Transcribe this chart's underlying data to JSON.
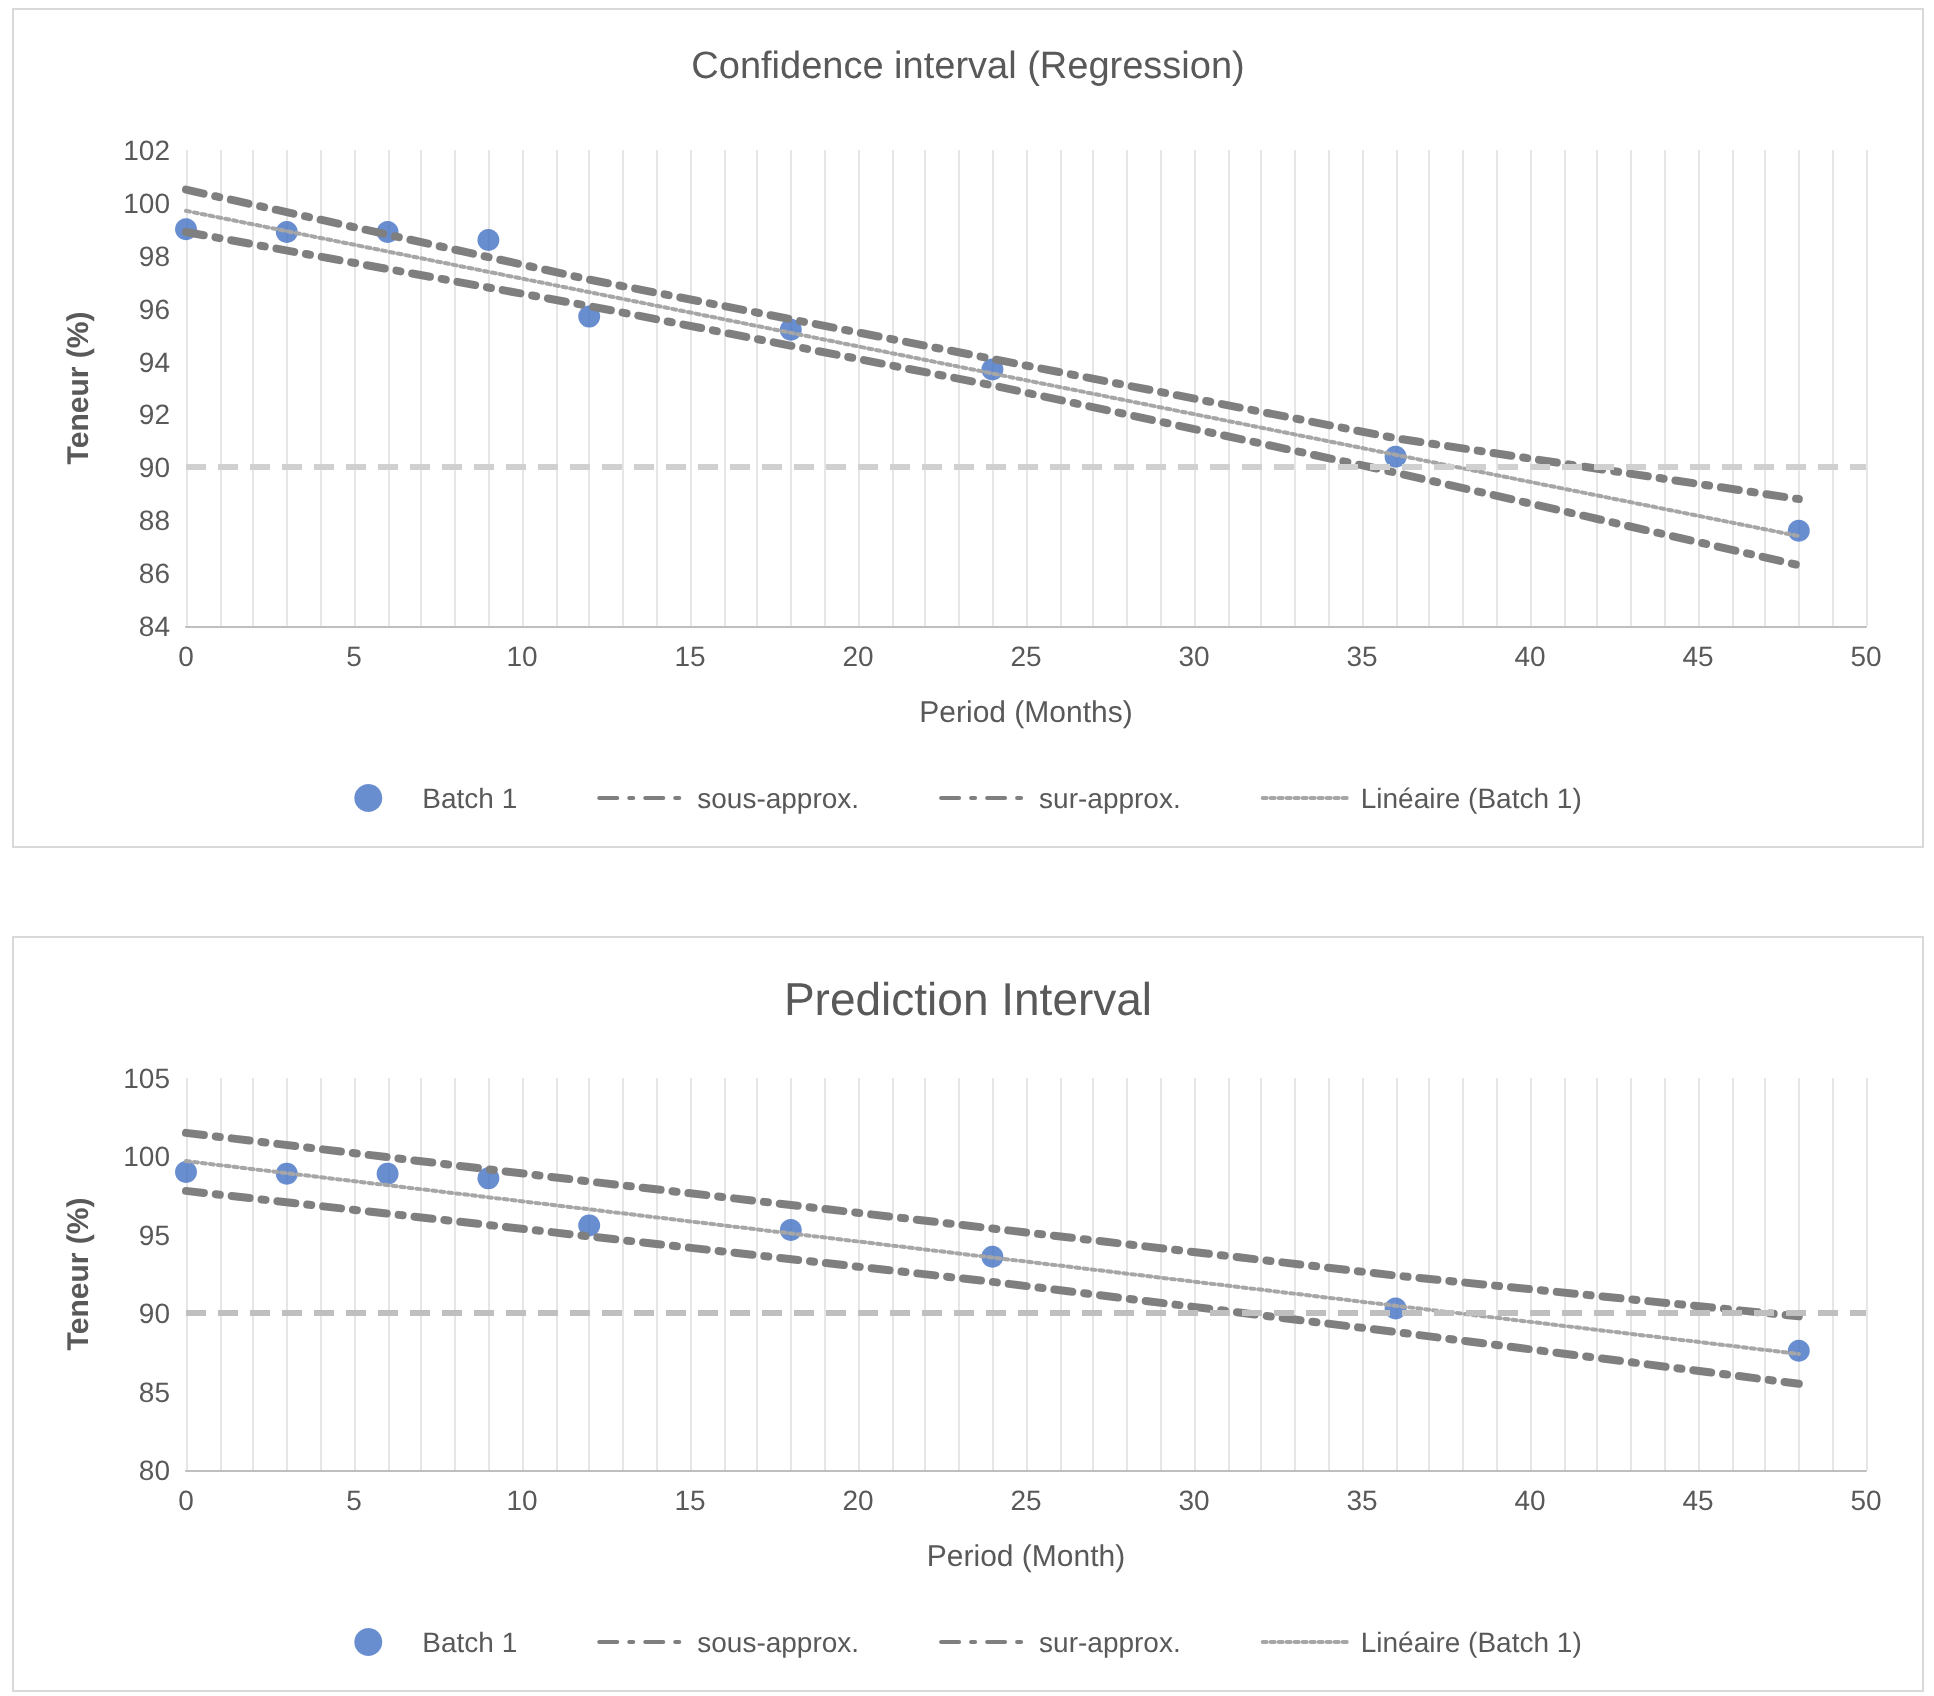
{
  "chart_data": [
    {
      "type": "scatter",
      "title": "Confidence interval (Regression)",
      "xlabel": "Period (Months)",
      "ylabel": "Teneur (%)",
      "xlim": [
        0,
        50
      ],
      "ylim": [
        84,
        102
      ],
      "xticks": [
        0,
        {
          "value": 1,
          "label": null
        },
        {
          "value": 2,
          "label": null
        },
        {
          "value": 3,
          "label": null
        },
        {
          "value": 4,
          "label": null
        },
        5,
        {
          "value": 6,
          "label": null
        },
        {
          "value": 7,
          "label": null
        },
        {
          "value": 8,
          "label": null
        },
        {
          "value": 9,
          "label": null
        },
        10,
        {
          "value": 11,
          "label": null
        },
        {
          "value": 12,
          "label": null
        },
        {
          "value": 13,
          "label": null
        },
        {
          "value": 14,
          "label": null
        },
        15,
        {
          "value": 16,
          "label": null
        },
        {
          "value": 17,
          "label": null
        },
        {
          "value": 18,
          "label": null
        },
        {
          "value": 19,
          "label": null
        },
        20,
        {
          "value": 21,
          "label": null
        },
        {
          "value": 22,
          "label": null
        },
        {
          "value": 23,
          "label": null
        },
        {
          "value": 24,
          "label": null
        },
        25,
        {
          "value": 26,
          "label": null
        },
        {
          "value": 27,
          "label": null
        },
        {
          "value": 28,
          "label": null
        },
        {
          "value": 29,
          "label": null
        },
        30,
        {
          "value": 31,
          "label": null
        },
        {
          "value": 32,
          "label": null
        },
        {
          "value": 33,
          "label": null
        },
        {
          "value": 34,
          "label": null
        },
        35,
        {
          "value": 36,
          "label": null
        },
        {
          "value": 37,
          "label": null
        },
        {
          "value": 38,
          "label": null
        },
        {
          "value": 39,
          "label": null
        },
        40,
        {
          "value": 41,
          "label": null
        },
        {
          "value": 42,
          "label": null
        },
        {
          "value": 43,
          "label": null
        },
        {
          "value": 44,
          "label": null
        },
        45,
        {
          "value": 46,
          "label": null
        },
        {
          "value": 47,
          "label": null
        },
        {
          "value": 48,
          "label": null
        },
        {
          "value": 49,
          "label": null
        },
        50
      ],
      "yticks": [
        84,
        86,
        88,
        90,
        92,
        94,
        96,
        98,
        100,
        102
      ],
      "grid": "x",
      "legend": "bottom",
      "ref_lines": [
        {
          "axis": "y",
          "value": 90,
          "color": "#d0d0d0",
          "line_style": "dashed"
        }
      ],
      "series": [
        {
          "name": "Batch 1",
          "marker": "circle",
          "color": "#4472c4",
          "x": [
            0,
            3,
            6,
            9,
            12,
            18,
            24,
            36,
            48
          ],
          "values": [
            99.0,
            98.9,
            98.9,
            98.6,
            95.7,
            95.2,
            93.7,
            90.4,
            87.6
          ]
        },
        {
          "name": "sous-approx.",
          "type": "line",
          "marker": "none",
          "line_style": "dashed",
          "color": "#7f7f7f",
          "x": [
            0,
            12,
            24,
            36,
            48
          ],
          "values": [
            98.9,
            96.1,
            93.1,
            89.8,
            86.3
          ]
        },
        {
          "name": "sur-approx.",
          "type": "line",
          "marker": "none",
          "line_style": "dashed",
          "color": "#7f7f7f",
          "x": [
            0,
            12,
            24,
            36,
            48
          ],
          "values": [
            100.5,
            97.1,
            94.1,
            91.1,
            88.8
          ]
        },
        {
          "name": "Linéaire (Batch 1)",
          "type": "line",
          "marker": "none",
          "line_style": "dotted",
          "color": "#a6a6a6",
          "x": [
            0,
            48
          ],
          "values": [
            99.7,
            87.4
          ]
        }
      ]
    },
    {
      "type": "scatter",
      "title": "Prediction Interval",
      "xlabel": "Period (Month)",
      "ylabel": "Teneur (%)",
      "xlim": [
        0,
        50
      ],
      "ylim": [
        80,
        105
      ],
      "xticks": [
        0,
        {
          "value": 1,
          "label": null
        },
        {
          "value": 2,
          "label": null
        },
        {
          "value": 3,
          "label": null
        },
        {
          "value": 4,
          "label": null
        },
        5,
        {
          "value": 6,
          "label": null
        },
        {
          "value": 7,
          "label": null
        },
        {
          "value": 8,
          "label": null
        },
        {
          "value": 9,
          "label": null
        },
        10,
        {
          "value": 11,
          "label": null
        },
        {
          "value": 12,
          "label": null
        },
        {
          "value": 13,
          "label": null
        },
        {
          "value": 14,
          "label": null
        },
        15,
        {
          "value": 16,
          "label": null
        },
        {
          "value": 17,
          "label": null
        },
        {
          "value": 18,
          "label": null
        },
        {
          "value": 19,
          "label": null
        },
        20,
        {
          "value": 21,
          "label": null
        },
        {
          "value": 22,
          "label": null
        },
        {
          "value": 23,
          "label": null
        },
        {
          "value": 24,
          "label": null
        },
        25,
        {
          "value": 26,
          "label": null
        },
        {
          "value": 27,
          "label": null
        },
        {
          "value": 28,
          "label": null
        },
        {
          "value": 29,
          "label": null
        },
        30,
        {
          "value": 31,
          "label": null
        },
        {
          "value": 32,
          "label": null
        },
        {
          "value": 33,
          "label": null
        },
        {
          "value": 34,
          "label": null
        },
        35,
        {
          "value": 36,
          "label": null
        },
        {
          "value": 37,
          "label": null
        },
        {
          "value": 38,
          "label": null
        },
        {
          "value": 39,
          "label": null
        },
        40,
        {
          "value": 41,
          "label": null
        },
        {
          "value": 42,
          "label": null
        },
        {
          "value": 43,
          "label": null
        },
        {
          "value": 44,
          "label": null
        },
        45,
        {
          "value": 46,
          "label": null
        },
        {
          "value": 47,
          "label": null
        },
        {
          "value": 48,
          "label": null
        },
        {
          "value": 49,
          "label": null
        },
        50
      ],
      "yticks": [
        80,
        85,
        90,
        95,
        100,
        105
      ],
      "grid": "x",
      "legend": "bottom",
      "ref_lines": [
        {
          "axis": "y",
          "value": 90,
          "color": "#bfbfbf",
          "line_style": "dashed"
        }
      ],
      "series": [
        {
          "name": "Batch 1",
          "marker": "circle",
          "color": "#4472c4",
          "x": [
            0,
            3,
            6,
            9,
            12,
            18,
            24,
            36,
            48
          ],
          "values": [
            99.0,
            98.9,
            98.9,
            98.6,
            95.6,
            95.3,
            93.6,
            90.3,
            87.6
          ]
        },
        {
          "name": "sous-approx.",
          "type": "line",
          "marker": "none",
          "line_style": "dashed",
          "color": "#7f7f7f",
          "x": [
            0,
            12,
            24,
            36,
            48
          ],
          "values": [
            97.8,
            94.9,
            92.0,
            88.8,
            85.5
          ]
        },
        {
          "name": "sur-approx.",
          "type": "line",
          "marker": "none",
          "line_style": "dashed",
          "color": "#7f7f7f",
          "x": [
            0,
            12,
            24,
            36,
            48
          ],
          "values": [
            101.5,
            98.4,
            95.4,
            92.4,
            89.8
          ]
        },
        {
          "name": "Linéaire (Batch 1)",
          "type": "line",
          "marker": "none",
          "line_style": "dotted",
          "color": "#a6a6a6",
          "x": [
            0,
            48
          ],
          "values": [
            99.7,
            87.4
          ]
        }
      ]
    }
  ]
}
